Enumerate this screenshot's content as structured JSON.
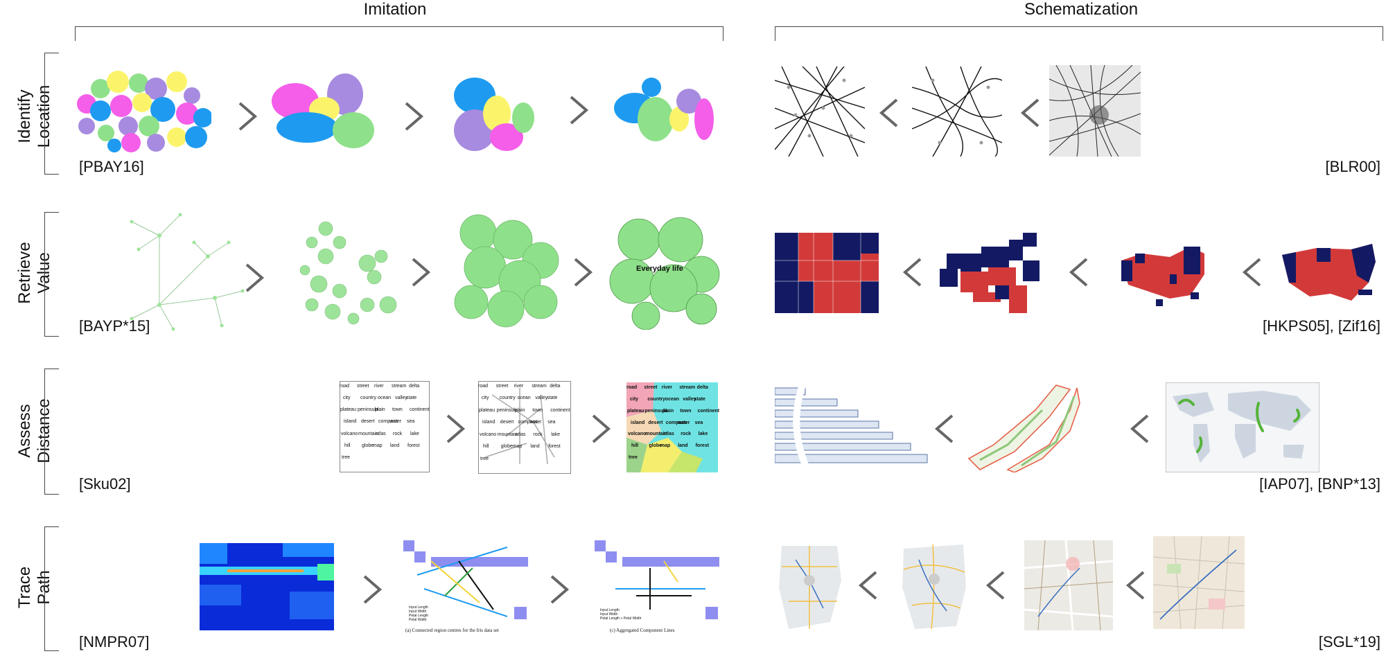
{
  "columns": {
    "left": "Imitation",
    "right": "Schematization"
  },
  "rows": [
    {
      "label_line1": "Identify",
      "label_line2": "Location",
      "cite_left": "[PBAY16]",
      "cite_right": "[BLR00]"
    },
    {
      "label_line1": "Retrieve",
      "label_line2": "Value",
      "cite_left": "[BAYP*15]",
      "cite_right": "[HKPS05], [Zif16]"
    },
    {
      "label_line1": "Assess",
      "label_line2": "Distance",
      "cite_left": "[Sku02]",
      "cite_right": "[IAP07], [BNP*13]"
    },
    {
      "label_line1": "Trace",
      "label_line2": "Path",
      "cite_left": "[NMPR07]",
      "cite_right": "[SGL*19]"
    }
  ],
  "word_map": {
    "words": [
      "road",
      "street",
      "river",
      "stream",
      "delta",
      "city",
      "country",
      "ocean",
      "valley",
      "state",
      "plateau",
      "peninsula",
      "plain",
      "town",
      "continent",
      "island",
      "desert",
      "compass",
      "water",
      "sea",
      "volcano",
      "mountain",
      "atlas",
      "rock",
      "lake",
      "hill",
      "globe",
      "map",
      "land",
      "forest",
      "tree"
    ]
  },
  "bubble_label": "Everyday life",
  "path_legend": {
    "items": [
      "Input Length",
      "Input Width",
      "Petal Length",
      "Petal Width"
    ],
    "caption_a": "(a) Connected region centres for the Iris data set",
    "caption_c": "(c) Aggregated Component Lines",
    "items_c": [
      "Input Length",
      "Input Width",
      "Petal Length + Petal Width"
    ]
  },
  "colors": {
    "bubble_pink": "#f45ee8",
    "bubble_blue": "#1e9bf0",
    "bubble_purple": "#a78be0",
    "bubble_yellow": "#fbf46b",
    "bubble_green": "#8fe08a",
    "node_green": "#9ee39a",
    "election_red": "#d23a3a",
    "election_navy": "#131a63",
    "heat_blue": "#0a2bd8",
    "grid_blue": "#8e8ef0",
    "word_cyan": "#6fe3e3"
  }
}
